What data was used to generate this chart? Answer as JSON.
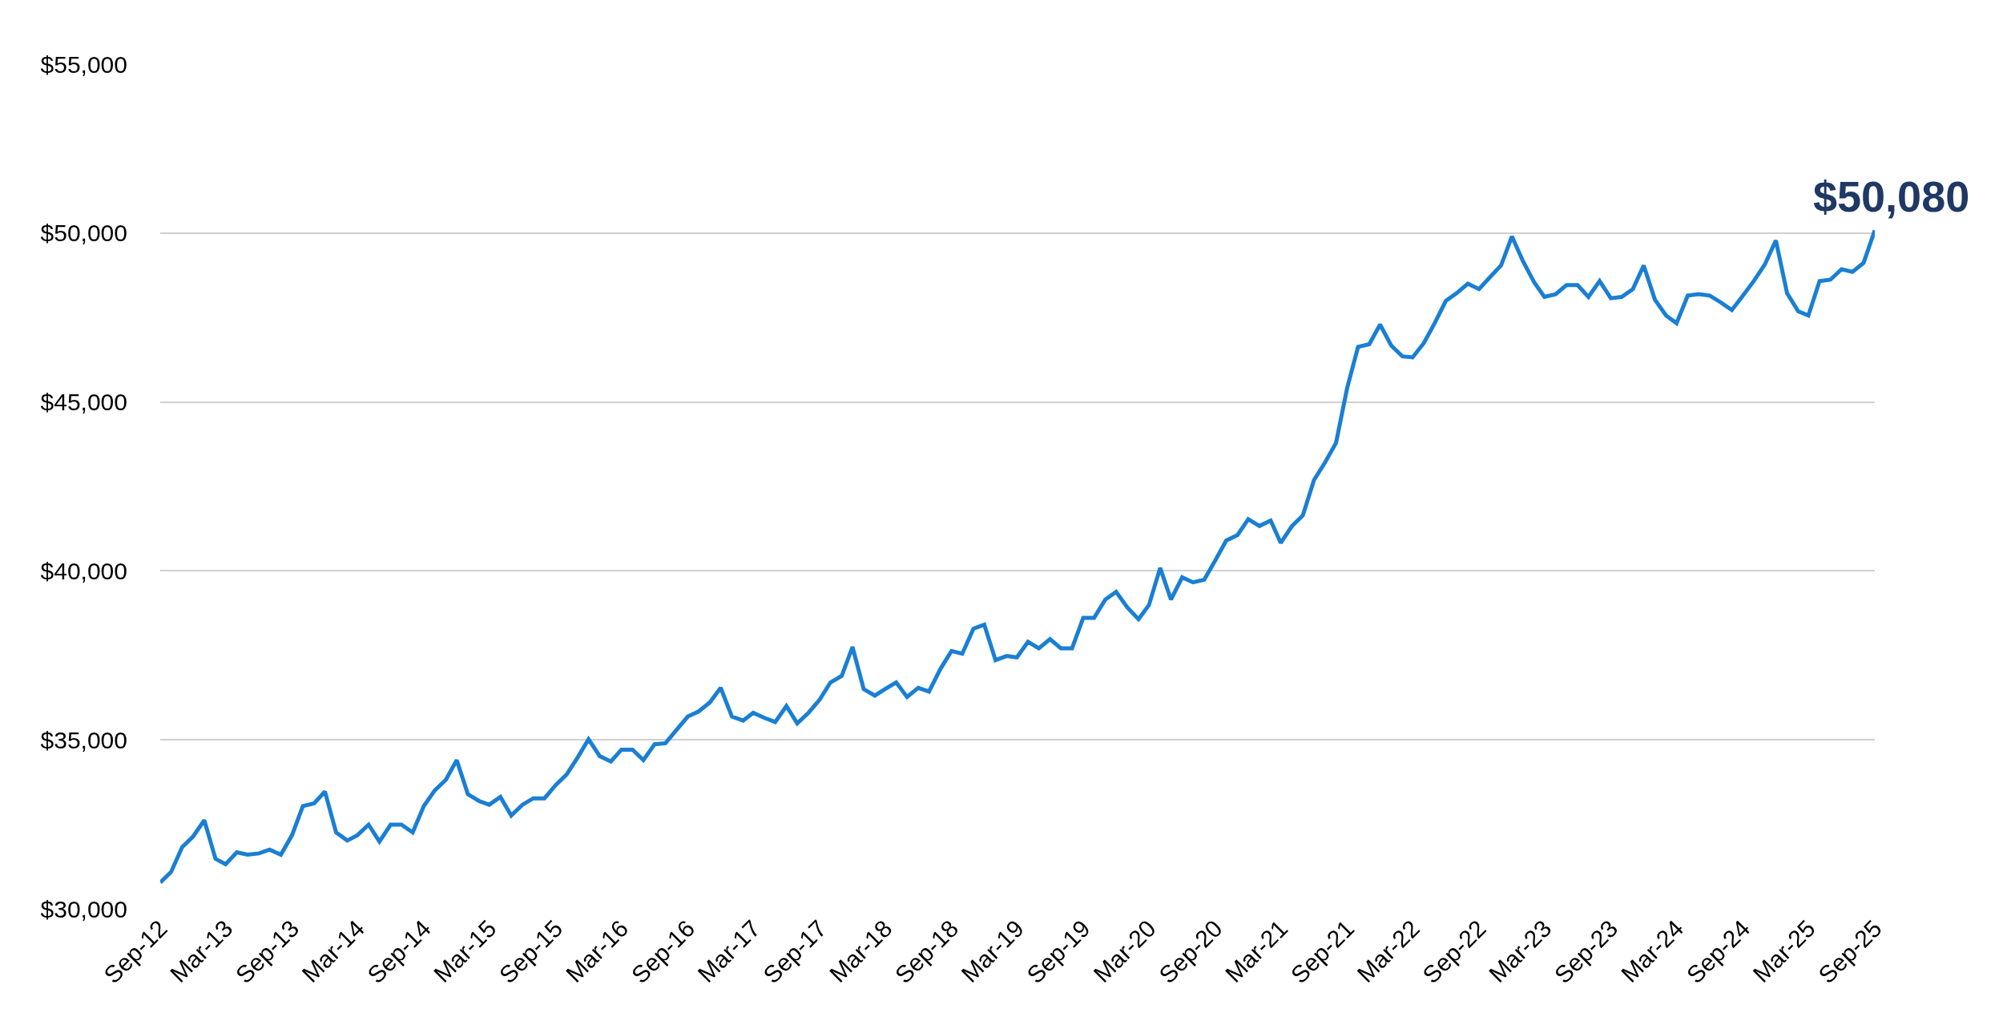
{
  "chart_data": {
    "type": "line",
    "x": [
      "2012-09",
      "2012-10",
      "2012-11",
      "2012-12",
      "2013-01",
      "2013-02",
      "2013-03",
      "2013-04",
      "2013-05",
      "2013-06",
      "2013-07",
      "2013-08",
      "2013-09",
      "2013-10",
      "2013-11",
      "2013-12",
      "2014-01",
      "2014-02",
      "2014-03",
      "2014-04",
      "2014-05",
      "2014-06",
      "2014-07",
      "2014-08",
      "2014-09",
      "2014-10",
      "2014-11",
      "2014-12",
      "2015-01",
      "2015-02",
      "2015-03",
      "2015-04",
      "2015-05",
      "2015-06",
      "2015-07",
      "2015-08",
      "2015-09",
      "2015-10",
      "2015-11",
      "2015-12",
      "2016-01",
      "2016-02",
      "2016-03",
      "2016-04",
      "2016-05",
      "2016-06",
      "2016-07",
      "2016-08",
      "2016-09",
      "2016-10",
      "2016-11",
      "2016-12",
      "2017-01",
      "2017-02",
      "2017-03",
      "2017-04",
      "2017-05",
      "2017-06",
      "2017-07",
      "2017-08",
      "2017-09",
      "2017-10",
      "2017-11",
      "2017-12",
      "2018-01",
      "2018-02",
      "2018-03",
      "2018-04",
      "2018-05",
      "2018-06",
      "2018-07",
      "2018-08",
      "2018-09",
      "2018-10",
      "2018-11",
      "2018-12",
      "2019-01",
      "2019-02",
      "2019-03",
      "2019-04",
      "2019-05",
      "2019-06",
      "2019-07",
      "2019-08",
      "2019-09",
      "2019-10",
      "2019-11",
      "2019-12",
      "2020-01",
      "2020-02",
      "2020-03",
      "2020-04",
      "2020-05",
      "2020-06",
      "2020-07",
      "2020-08",
      "2020-09",
      "2020-10",
      "2020-11",
      "2020-12",
      "2021-01",
      "2021-02",
      "2021-03",
      "2021-04",
      "2021-05",
      "2021-06",
      "2021-07",
      "2021-08",
      "2021-09",
      "2021-10",
      "2021-11",
      "2021-12",
      "2022-01",
      "2022-02",
      "2022-03",
      "2022-04",
      "2022-05",
      "2022-06",
      "2022-07",
      "2022-08",
      "2022-09",
      "2022-10",
      "2022-11",
      "2022-12",
      "2023-01",
      "2023-02",
      "2023-03",
      "2023-04",
      "2023-05",
      "2023-06",
      "2023-07",
      "2023-08",
      "2023-09",
      "2023-10",
      "2023-11",
      "2023-12",
      "2024-01",
      "2024-02",
      "2024-03",
      "2024-04",
      "2024-05",
      "2024-06",
      "2024-07",
      "2024-08",
      "2024-09",
      "2024-10",
      "2024-11",
      "2024-12",
      "2025-01",
      "2025-02",
      "2025-03",
      "2025-04",
      "2025-05",
      "2025-06",
      "2025-07",
      "2025-08",
      "2025-09"
    ],
    "series": [
      {
        "color": "#1a7fd4",
        "values": [
          30780,
          31090,
          31830,
          32140,
          32620,
          31480,
          31320,
          31670,
          31600,
          31640,
          31750,
          31600,
          32180,
          33040,
          33120,
          33470,
          32260,
          32020,
          32180,
          32490,
          31990,
          32490,
          32490,
          32260,
          33040,
          33500,
          33820,
          34400,
          33390,
          33190,
          33080,
          33310,
          32760,
          33080,
          33270,
          33270,
          33660,
          33970,
          34480,
          35020,
          34520,
          34360,
          34710,
          34710,
          34400,
          34870,
          34900,
          35300,
          35690,
          35840,
          36110,
          36540,
          35690,
          35570,
          35800,
          35650,
          35530,
          36000,
          35490,
          35800,
          36190,
          36700,
          36890,
          37750,
          36500,
          36310,
          36500,
          36700,
          36270,
          36540,
          36430,
          37090,
          37630,
          37550,
          38290,
          38410,
          37360,
          37480,
          37440,
          37900,
          37710,
          37980,
          37710,
          37710,
          38610,
          38610,
          39150,
          39380,
          38920,
          38570,
          38990,
          40090,
          39150,
          39810,
          39660,
          39740,
          40320,
          40900,
          41060,
          41530,
          41330,
          41490,
          40830,
          41330,
          41640,
          42690,
          43200,
          43790,
          45420,
          46630,
          46710,
          47290,
          46670,
          46350,
          46320,
          46740,
          47330,
          47990,
          48220,
          48500,
          48340,
          48690,
          49040,
          49900,
          49160,
          48540,
          48110,
          48190,
          48460,
          48460,
          48110,
          48580,
          48070,
          48110,
          48340,
          49040,
          48030,
          47560,
          47330,
          48150,
          48190,
          48150,
          47950,
          47720,
          48150,
          48580,
          49080,
          49780,
          48220,
          47680,
          47560,
          48580,
          48620,
          48930,
          48850,
          49120,
          50080
        ]
      }
    ],
    "xlim": [
      "2012-09",
      "2025-09"
    ],
    "xticks": [
      {
        "value": "2012-09",
        "label": "Sep-12"
      },
      {
        "value": "2013-03",
        "label": "Mar-13"
      },
      {
        "value": "2013-09",
        "label": "Sep-13"
      },
      {
        "value": "2014-03",
        "label": "Mar-14"
      },
      {
        "value": "2014-09",
        "label": "Sep-14"
      },
      {
        "value": "2015-03",
        "label": "Mar-15"
      },
      {
        "value": "2015-09",
        "label": "Sep-15"
      },
      {
        "value": "2016-03",
        "label": "Mar-16"
      },
      {
        "value": "2016-09",
        "label": "Sep-16"
      },
      {
        "value": "2017-03",
        "label": "Mar-17"
      },
      {
        "value": "2017-09",
        "label": "Sep-17"
      },
      {
        "value": "2018-03",
        "label": "Mar-18"
      },
      {
        "value": "2018-09",
        "label": "Sep-18"
      },
      {
        "value": "2019-03",
        "label": "Mar-19"
      },
      {
        "value": "2019-09",
        "label": "Sep-19"
      },
      {
        "value": "2020-03",
        "label": "Mar-20"
      },
      {
        "value": "2020-09",
        "label": "Sep-20"
      },
      {
        "value": "2021-03",
        "label": "Mar-21"
      },
      {
        "value": "2021-09",
        "label": "Sep-21"
      },
      {
        "value": "2022-03",
        "label": "Mar-22"
      },
      {
        "value": "2022-09",
        "label": "Sep-22"
      },
      {
        "value": "2023-03",
        "label": "Mar-23"
      },
      {
        "value": "2023-09",
        "label": "Sep-23"
      },
      {
        "value": "2024-03",
        "label": "Mar-24"
      },
      {
        "value": "2024-09",
        "label": "Sep-24"
      },
      {
        "value": "2025-03",
        "label": "Mar-25"
      },
      {
        "value": "2025-09",
        "label": "Sep-25"
      }
    ],
    "ylim": [
      30000,
      55000
    ],
    "yticks": [
      {
        "value": 30000,
        "label": "$30,000"
      },
      {
        "value": 35000,
        "label": "$35,000"
      },
      {
        "value": 40000,
        "label": "$40,000"
      },
      {
        "value": 45000,
        "label": "$45,000"
      },
      {
        "value": 50000,
        "label": "$50,000"
      },
      {
        "value": 55000,
        "label": "$55,000"
      }
    ],
    "grid": "y",
    "marker": "none",
    "line_style": "solid",
    "annotations": [
      {
        "text": "$50,080",
        "x": "2025-09",
        "y": 50080
      }
    ]
  }
}
